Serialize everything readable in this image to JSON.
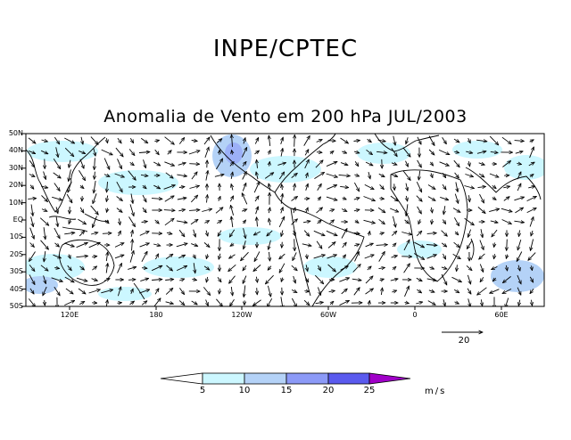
{
  "header": {
    "org_title": "INPE/CPTEC",
    "map_title": "Anomalia de Vento em 200 hPa JUL/2003"
  },
  "map": {
    "lat_labels": [
      "50N",
      "40N",
      "30N",
      "20N",
      "10N",
      "EQ",
      "10S",
      "20S",
      "30S",
      "40S",
      "50S"
    ],
    "lon_labels": [
      "120E",
      "180",
      "120W",
      "60W",
      "0",
      "60E"
    ],
    "reference_vector": {
      "value": "20"
    }
  },
  "colorbar": {
    "ticks": [
      "5",
      "10",
      "15",
      "20",
      "25"
    ],
    "unit": "m/s",
    "colors": [
      "#ffffff",
      "#ccf7ff",
      "#b4d2f7",
      "#8c9af7",
      "#5a5aee",
      "#a000c8"
    ]
  }
}
